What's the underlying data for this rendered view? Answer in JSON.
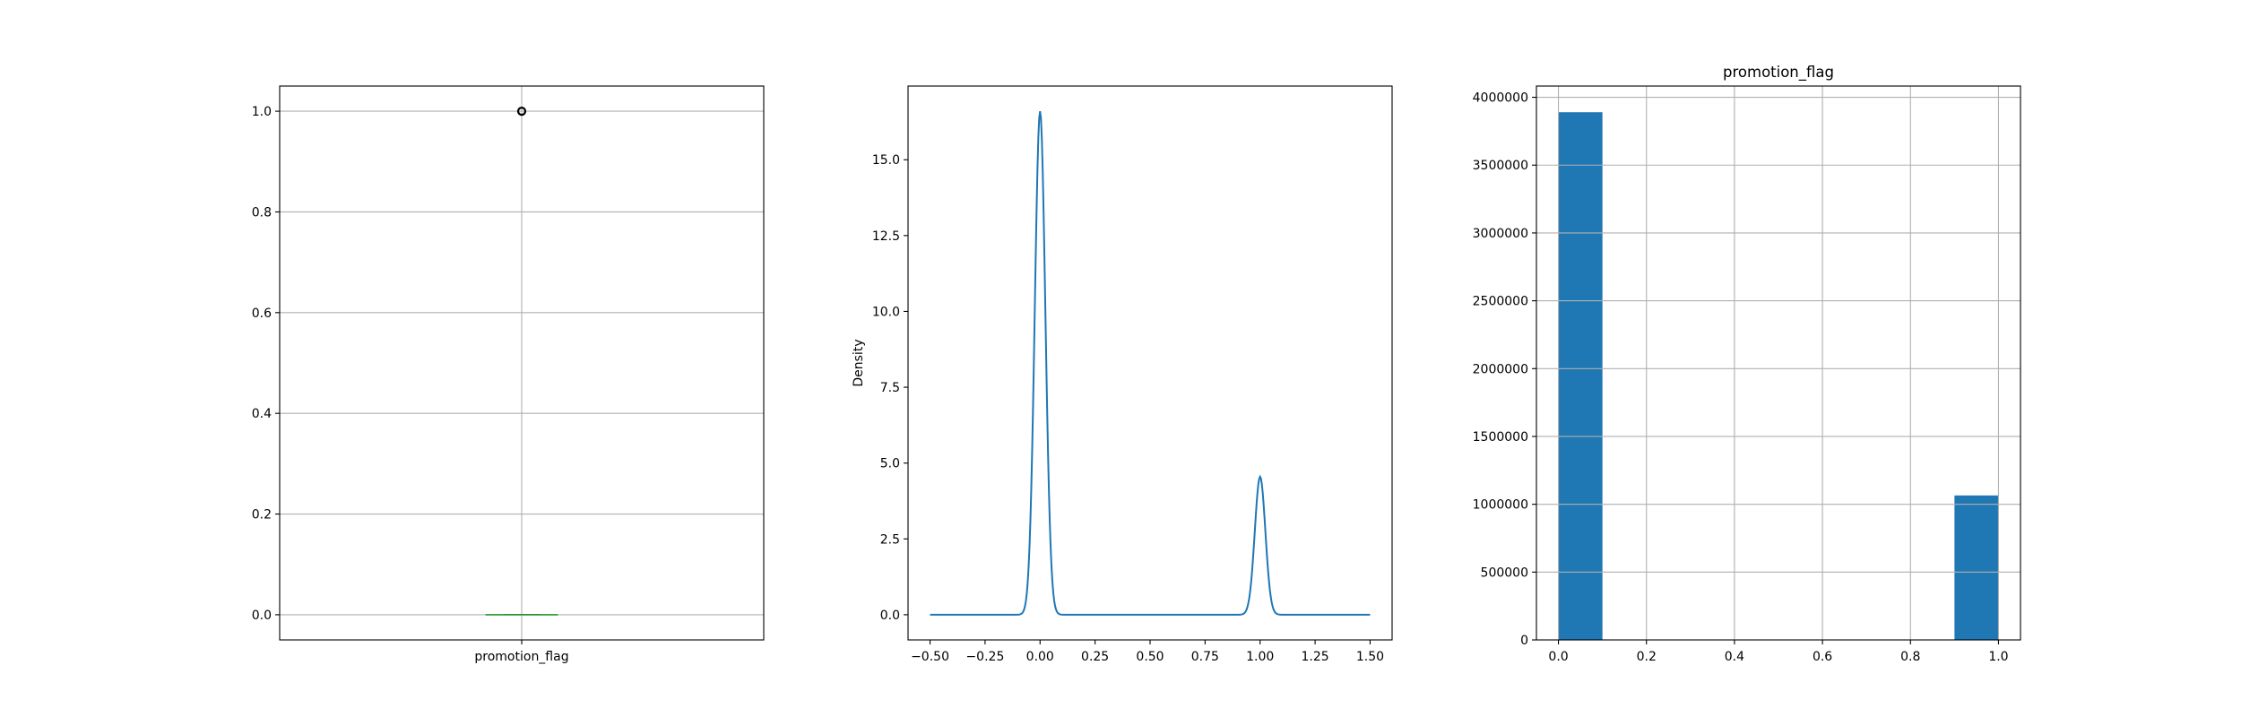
{
  "colors": {
    "series": "#1f77b4",
    "median": "#2ca02c",
    "grid": "#b0b0b0",
    "frame": "#000000"
  },
  "chart_data": [
    {
      "type": "box",
      "title": "",
      "xlabel": "",
      "ylabel": "",
      "category_label": "promotion_flag",
      "ylim": [
        -0.05,
        1.05
      ],
      "yticks": [
        0.0,
        0.2,
        0.4,
        0.6,
        0.8,
        1.0
      ],
      "ytick_labels": [
        "0.0",
        "0.2",
        "0.4",
        "0.6",
        "0.8",
        "1.0"
      ],
      "grid": true,
      "stats": {
        "min": 0.0,
        "q1": 0.0,
        "median": 0.0,
        "q3": 0.0,
        "max": 0.0,
        "outliers": [
          1.0
        ]
      }
    },
    {
      "type": "line",
      "title": "",
      "xlabel": "",
      "ylabel": "Density",
      "xlim": [
        -0.6,
        1.6
      ],
      "ylim": [
        -0.83,
        17.43
      ],
      "xticks": [
        -0.5,
        -0.25,
        0.0,
        0.25,
        0.5,
        0.75,
        1.0,
        1.25,
        1.5
      ],
      "xtick_labels": [
        "−0.50",
        "−0.25",
        "0.00",
        "0.25",
        "0.50",
        "0.75",
        "1.00",
        "1.25",
        "1.50"
      ],
      "yticks": [
        0.0,
        2.5,
        5.0,
        7.5,
        10.0,
        12.5,
        15.0
      ],
      "ytick_labels": [
        "0.0",
        "2.5",
        "5.0",
        "7.5",
        "10.0",
        "12.5",
        "15.0"
      ],
      "grid": false,
      "series": [
        {
          "curve": "kde",
          "range": [
            -0.5,
            1.5
          ],
          "peaks": [
            {
              "x": 0.0,
              "y": 16.6
            },
            {
              "x": 1.0,
              "y": 4.55
            }
          ]
        }
      ]
    },
    {
      "type": "histogram",
      "title": "promotion_flag",
      "xlabel": "",
      "ylabel": "",
      "xlim": [
        -0.05,
        1.05
      ],
      "ylim": [
        0,
        4083000
      ],
      "xticks": [
        0.0,
        0.2,
        0.4,
        0.6,
        0.8,
        1.0
      ],
      "xtick_labels": [
        "0.0",
        "0.2",
        "0.4",
        "0.6",
        "0.8",
        "1.0"
      ],
      "yticks": [
        0,
        500000,
        1000000,
        1500000,
        2000000,
        2500000,
        3000000,
        3500000,
        4000000
      ],
      "ytick_labels": [
        "0",
        "500000",
        "1000000",
        "1500000",
        "2000000",
        "2500000",
        "3000000",
        "3500000",
        "4000000"
      ],
      "grid": true,
      "bins": [
        {
          "x0": 0.0,
          "x1": 0.1,
          "count": 3890000
        },
        {
          "x0": 0.1,
          "x1": 0.2,
          "count": 0
        },
        {
          "x0": 0.2,
          "x1": 0.3,
          "count": 0
        },
        {
          "x0": 0.3,
          "x1": 0.4,
          "count": 0
        },
        {
          "x0": 0.4,
          "x1": 0.5,
          "count": 0
        },
        {
          "x0": 0.5,
          "x1": 0.6,
          "count": 0
        },
        {
          "x0": 0.6,
          "x1": 0.7,
          "count": 0
        },
        {
          "x0": 0.7,
          "x1": 0.8,
          "count": 0
        },
        {
          "x0": 0.8,
          "x1": 0.9,
          "count": 0
        },
        {
          "x0": 0.9,
          "x1": 1.0,
          "count": 1065000
        }
      ]
    }
  ]
}
